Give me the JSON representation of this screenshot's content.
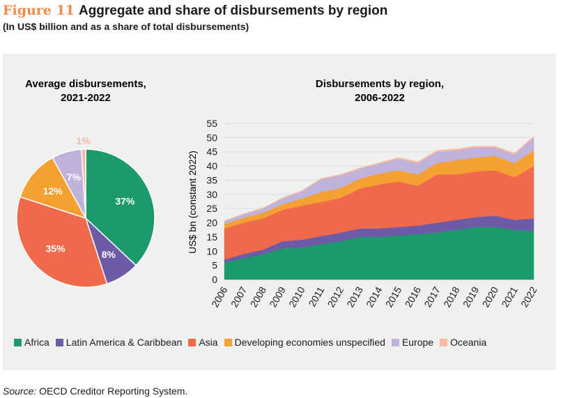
{
  "figure": {
    "number": "Figure 11",
    "title": "Aggregate and share of disbursements by region",
    "subtitle": "(In US$ billion and as a share of total disbursements)"
  },
  "source": {
    "label": "Source:",
    "text": " OECD Creditor Reporting System."
  },
  "colors": {
    "Africa": "#1c9a6c",
    "Latin America & Caribbean": "#6d5ba8",
    "Asia": "#ee6a4a",
    "Developing economies unspecified": "#f5a033",
    "Europe": "#bfb3dc",
    "Oceania": "#f7b9a2"
  },
  "chart_data": [
    {
      "type": "pie",
      "title_line1": "Average disbursements,",
      "title_line2": "2021-2022",
      "slices": [
        {
          "name": "Africa",
          "value": 37,
          "label": "37%"
        },
        {
          "name": "Latin America & Caribbean",
          "value": 8,
          "label": "8%"
        },
        {
          "name": "Asia",
          "value": 35,
          "label": "35%"
        },
        {
          "name": "Developing economies unspecified",
          "value": 12,
          "label": "12%"
        },
        {
          "name": "Europe",
          "value": 7,
          "label": "7%"
        },
        {
          "name": "Oceania",
          "value": 1,
          "label": "1%"
        }
      ]
    },
    {
      "type": "area",
      "stacked": true,
      "title_line1": "Disbursements by region,",
      "title_line2": "2006-2022",
      "ylabel": "US$ bn (constant 2022)",
      "ylim": [
        0,
        55
      ],
      "yticks": [
        0,
        5,
        10,
        15,
        20,
        25,
        30,
        35,
        40,
        45,
        50,
        55
      ],
      "x": [
        "2006",
        "2007",
        "2008",
        "2009",
        "2010",
        "2011",
        "2012",
        "2013",
        "2014",
        "2015",
        "2016",
        "2017",
        "2018",
        "2019",
        "2020",
        "2021",
        "2022"
      ],
      "series": [
        {
          "name": "Africa",
          "values": [
            6.0,
            7.5,
            9.0,
            11.0,
            11.2,
            12.5,
            13.5,
            15.0,
            15.0,
            15.5,
            16.0,
            16.5,
            17.5,
            18.5,
            18.5,
            17.5,
            17.0
          ]
        },
        {
          "name": "Latin America & Caribbean",
          "values": [
            1.0,
            1.5,
            1.5,
            2.5,
            2.8,
            2.8,
            3.0,
            3.0,
            3.0,
            3.0,
            3.0,
            3.5,
            3.5,
            3.5,
            4.0,
            3.5,
            4.5
          ]
        },
        {
          "name": "Asia",
          "values": [
            11.0,
            11.0,
            11.0,
            11.0,
            12.0,
            12.0,
            12.2,
            14.0,
            15.5,
            16.0,
            14.0,
            17.0,
            16.0,
            16.0,
            16.0,
            15.0,
            18.5
          ]
        },
        {
          "name": "Developing economies unspecified",
          "values": [
            1.5,
            1.8,
            2.0,
            2.0,
            2.5,
            3.5,
            3.5,
            3.5,
            3.8,
            4.0,
            4.0,
            4.0,
            5.0,
            5.0,
            5.0,
            5.0,
            5.5
          ]
        },
        {
          "name": "Europe",
          "values": [
            1.0,
            1.2,
            1.5,
            2.0,
            2.5,
            4.5,
            4.5,
            3.5,
            3.5,
            4.0,
            4.0,
            4.0,
            3.5,
            3.5,
            3.0,
            3.0,
            4.5
          ]
        },
        {
          "name": "Oceania",
          "values": [
            0.2,
            0.2,
            0.2,
            0.3,
            0.3,
            0.3,
            0.3,
            0.3,
            0.3,
            0.5,
            0.5,
            0.5,
            0.5,
            0.5,
            0.5,
            0.5,
            0.5
          ]
        }
      ]
    }
  ]
}
